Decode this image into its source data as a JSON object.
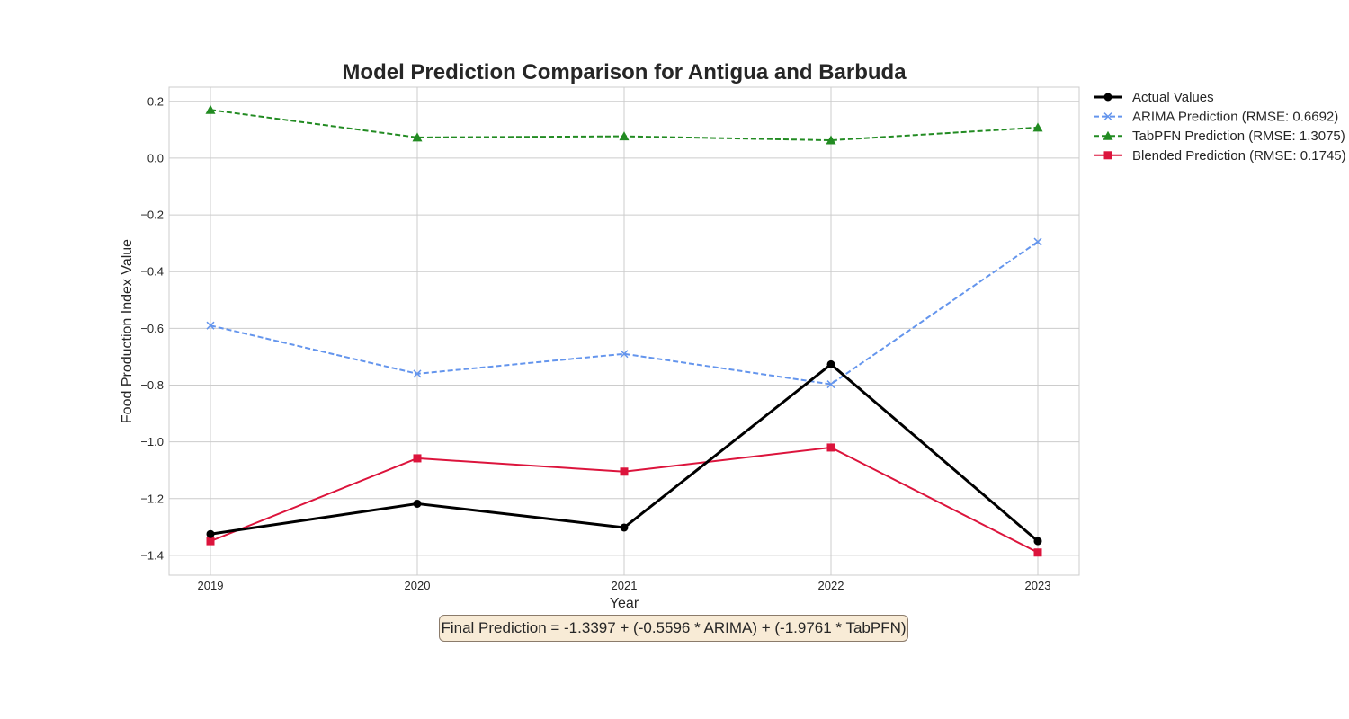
{
  "chart_data": {
    "type": "line",
    "title": "Model Prediction Comparison for Antigua and Barbuda",
    "xlabel": "Year",
    "ylabel": "Food Production Index Value",
    "x": [
      2019,
      2020,
      2021,
      2022,
      2023
    ],
    "x_tick_labels": [
      "2019",
      "2020",
      "2021",
      "2022",
      "2023"
    ],
    "xlim": [
      2018.8,
      2023.2
    ],
    "ylim": [
      -1.47,
      0.25
    ],
    "y_ticks": [
      0.2,
      0.0,
      -0.2,
      -0.4,
      -0.6,
      -0.8,
      -1.0,
      -1.2,
      -1.4
    ],
    "y_tick_labels": [
      "0.2",
      "0.0",
      "−0.2",
      "−0.4",
      "−0.6",
      "−0.8",
      "−1.0",
      "−1.2",
      "−1.4"
    ],
    "grid": true,
    "legend_position": "outside right, top",
    "series": [
      {
        "name": "Actual Values",
        "values": [
          -1.325,
          -1.218,
          -1.302,
          -0.727,
          -1.35
        ],
        "color": "#000000",
        "linestyle": "solid",
        "marker": "circle"
      },
      {
        "name": "ARIMA Prediction (RMSE: 0.6692)",
        "values": [
          -0.59,
          -0.76,
          -0.69,
          -0.797,
          -0.295
        ],
        "color": "#6495ed",
        "linestyle": "dashed",
        "marker": "x"
      },
      {
        "name": "TabPFN Prediction (RMSE: 1.3075)",
        "values": [
          0.17,
          0.073,
          0.077,
          0.063,
          0.108
        ],
        "color": "#228b22",
        "linestyle": "dashed",
        "marker": "triangle"
      },
      {
        "name": "Blended Prediction (RMSE: 0.1745)",
        "values": [
          -1.35,
          -1.058,
          -1.105,
          -1.02,
          -1.39
        ],
        "color": "#dc143c",
        "linestyle": "solid",
        "marker": "square"
      }
    ],
    "annotation": "Final Prediction = -1.3397 + (-0.5596 * ARIMA) + (-1.9761 * TabPFN)"
  }
}
